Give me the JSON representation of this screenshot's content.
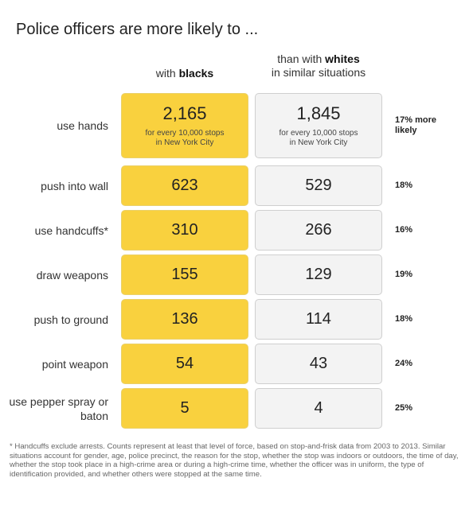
{
  "chart_data": {
    "type": "table",
    "title": "Police officers are more likely to ...",
    "columns": {
      "blacks_prefix": "with ",
      "blacks_bold": "blacks",
      "whites_line1_prefix": "than with ",
      "whites_line1_bold": "whites",
      "whites_line2": "in similar situations"
    },
    "sub_line1": "for every 10,000 stops",
    "sub_line2": "in New York City",
    "rows": [
      {
        "label": "use hands",
        "blacks": "2,165",
        "whites": "1,845",
        "pct": "17% more likely"
      },
      {
        "label": "push into wall",
        "blacks": "623",
        "whites": "529",
        "pct": "18%"
      },
      {
        "label": "use handcuffs*",
        "blacks": "310",
        "whites": "266",
        "pct": "16%"
      },
      {
        "label": "draw weapons",
        "blacks": "155",
        "whites": "129",
        "pct": "19%"
      },
      {
        "label": "push to ground",
        "blacks": "136",
        "whites": "114",
        "pct": "18%"
      },
      {
        "label": "point weapon",
        "blacks": "54",
        "whites": "43",
        "pct": "24%"
      },
      {
        "label": "use pepper spray or baton",
        "blacks": "5",
        "whites": "4",
        "pct": "25%"
      }
    ],
    "colors": {
      "blacks_fill": "#f9d13e",
      "whites_fill": "#f3f3f3"
    },
    "footnote": "* Handcuffs exclude arrests. Counts represent at least that level of force, based on stop-and-frisk data from 2003 to 2013. Similar situations account for gender, age, police precinct, the reason for the stop, whether the stop was indoors or outdoors, the time of day, whether the stop took place in a high-crime area or during a high-crime time, whether the officer was in uniform, the type of identification provided, and whether others were stopped at the same time."
  }
}
